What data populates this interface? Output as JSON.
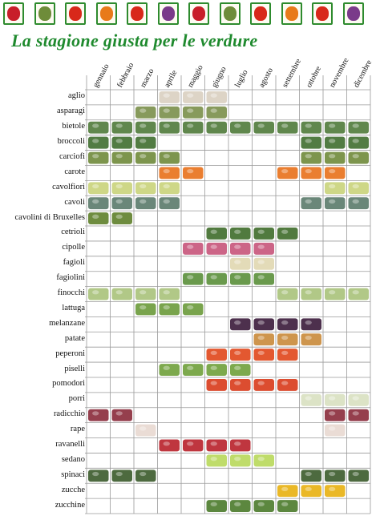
{
  "title": "La stagione giusta per le verdure",
  "border_icons": [
    "cherries-icon",
    "artichoke-icon",
    "tomato-icon",
    "carrot-icon",
    "tomato-icon",
    "grapes-icon",
    "cherries-icon",
    "artichoke-icon",
    "tomato-icon",
    "carrot-icon",
    "tomato-icon",
    "grapes-icon"
  ],
  "months": [
    "gennaio",
    "febbraio",
    "marzo",
    "aprile",
    "maggio",
    "giugno",
    "luglio",
    "agosto",
    "settembre",
    "ottobre",
    "novembre",
    "dicembre"
  ],
  "vegetables": [
    {
      "name": "aglio",
      "months": [
        4,
        5,
        6
      ],
      "color": "#d9cfc0"
    },
    {
      "name": "asparagi",
      "months": [
        3,
        4,
        5,
        6
      ],
      "color": "#7a8f4a"
    },
    {
      "name": "bietole",
      "months": [
        1,
        2,
        3,
        4,
        5,
        6,
        7,
        8,
        9,
        10,
        11,
        12
      ],
      "color": "#4f7a3a"
    },
    {
      "name": "broccoli",
      "months": [
        1,
        2,
        3,
        10,
        11,
        12
      ],
      "color": "#3f6e2f"
    },
    {
      "name": "carciofi",
      "months": [
        1,
        2,
        3,
        4,
        10,
        11,
        12
      ],
      "color": "#6f8a3a"
    },
    {
      "name": "carote",
      "months": [
        4,
        5,
        9,
        10,
        11
      ],
      "color": "#e8701a"
    },
    {
      "name": "cavolfiori",
      "months": [
        1,
        2,
        3,
        4,
        11,
        12
      ],
      "color": "#c9d37a"
    },
    {
      "name": "cavoli",
      "months": [
        1,
        2,
        3,
        4,
        10,
        11,
        12
      ],
      "color": "#5a7a6a"
    },
    {
      "name": "cavolini di Bruxelles",
      "months": [
        1,
        2
      ],
      "color": "#5e7f2a"
    },
    {
      "name": "cetrioli",
      "months": [
        6,
        7,
        8,
        9
      ],
      "color": "#3e6b2a"
    },
    {
      "name": "cipolle",
      "months": [
        5,
        6,
        7,
        8
      ],
      "color": "#c7547a"
    },
    {
      "name": "fagioli",
      "months": [
        7,
        8
      ],
      "color": "#e0d7b0"
    },
    {
      "name": "fagiolini",
      "months": [
        5,
        6,
        7,
        8
      ],
      "color": "#5a8f3a"
    },
    {
      "name": "finocchi",
      "months": [
        1,
        2,
        3,
        4,
        9,
        10,
        11,
        12
      ],
      "color": "#a8c27a"
    },
    {
      "name": "lattuga",
      "months": [
        3,
        4,
        5
      ],
      "color": "#6a9a3a"
    },
    {
      "name": "melanzane",
      "months": [
        7,
        8,
        9,
        10
      ],
      "color": "#3a1a3a"
    },
    {
      "name": "patate",
      "months": [
        8,
        9,
        10
      ],
      "color": "#c98a3a"
    },
    {
      "name": "peperoni",
      "months": [
        6,
        7,
        8,
        9
      ],
      "color": "#e0461a"
    },
    {
      "name": "piselli",
      "months": [
        4,
        5,
        6,
        7
      ],
      "color": "#6fa03a"
    },
    {
      "name": "pomodori",
      "months": [
        6,
        7,
        8,
        9
      ],
      "color": "#d83a1a"
    },
    {
      "name": "porri",
      "months": [
        10,
        11,
        12
      ],
      "color": "#d8e0c0"
    },
    {
      "name": "radicchio",
      "months": [
        1,
        2,
        11,
        12
      ],
      "color": "#8a2a3a"
    },
    {
      "name": "rape",
      "months": [
        3,
        11
      ],
      "color": "#e8d8d0"
    },
    {
      "name": "ravanelli",
      "months": [
        4,
        5,
        6,
        7
      ],
      "color": "#b8202a"
    },
    {
      "name": "sedano",
      "months": [
        6,
        7,
        8
      ],
      "color": "#b8d85a"
    },
    {
      "name": "spinaci",
      "months": [
        1,
        2,
        3,
        10,
        11,
        12
      ],
      "color": "#3a5a2a"
    },
    {
      "name": "zucche",
      "months": [
        9,
        10,
        11
      ],
      "color": "#e8b010"
    },
    {
      "name": "zucchine",
      "months": [
        6,
        7,
        8,
        9
      ],
      "color": "#4a7a2a"
    }
  ]
}
